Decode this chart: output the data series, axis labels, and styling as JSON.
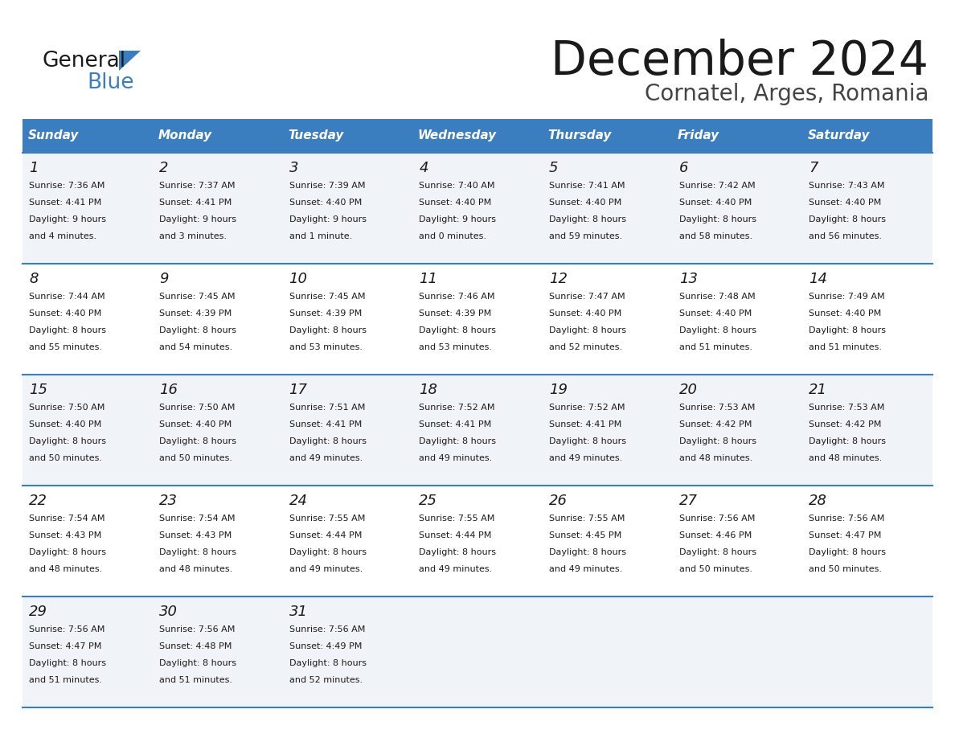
{
  "title": "December 2024",
  "subtitle": "Cornatel, Arges, Romania",
  "header_bg_color": "#3a7ebf",
  "header_text_color": "#ffffff",
  "row_bg_even": "#f0f4f8",
  "row_bg_odd": "#ffffff",
  "border_color": "#3a7ebf",
  "days_of_week": [
    "Sunday",
    "Monday",
    "Tuesday",
    "Wednesday",
    "Thursday",
    "Friday",
    "Saturday"
  ],
  "calendar_data": [
    [
      {
        "day": 1,
        "sunrise": "7:36 AM",
        "sunset": "4:41 PM",
        "daylight_line1": "Daylight: 9 hours",
        "daylight_line2": "and 4 minutes."
      },
      {
        "day": 2,
        "sunrise": "7:37 AM",
        "sunset": "4:41 PM",
        "daylight_line1": "Daylight: 9 hours",
        "daylight_line2": "and 3 minutes."
      },
      {
        "day": 3,
        "sunrise": "7:39 AM",
        "sunset": "4:40 PM",
        "daylight_line1": "Daylight: 9 hours",
        "daylight_line2": "and 1 minute."
      },
      {
        "day": 4,
        "sunrise": "7:40 AM",
        "sunset": "4:40 PM",
        "daylight_line1": "Daylight: 9 hours",
        "daylight_line2": "and 0 minutes."
      },
      {
        "day": 5,
        "sunrise": "7:41 AM",
        "sunset": "4:40 PM",
        "daylight_line1": "Daylight: 8 hours",
        "daylight_line2": "and 59 minutes."
      },
      {
        "day": 6,
        "sunrise": "7:42 AM",
        "sunset": "4:40 PM",
        "daylight_line1": "Daylight: 8 hours",
        "daylight_line2": "and 58 minutes."
      },
      {
        "day": 7,
        "sunrise": "7:43 AM",
        "sunset": "4:40 PM",
        "daylight_line1": "Daylight: 8 hours",
        "daylight_line2": "and 56 minutes."
      }
    ],
    [
      {
        "day": 8,
        "sunrise": "7:44 AM",
        "sunset": "4:40 PM",
        "daylight_line1": "Daylight: 8 hours",
        "daylight_line2": "and 55 minutes."
      },
      {
        "day": 9,
        "sunrise": "7:45 AM",
        "sunset": "4:39 PM",
        "daylight_line1": "Daylight: 8 hours",
        "daylight_line2": "and 54 minutes."
      },
      {
        "day": 10,
        "sunrise": "7:45 AM",
        "sunset": "4:39 PM",
        "daylight_line1": "Daylight: 8 hours",
        "daylight_line2": "and 53 minutes."
      },
      {
        "day": 11,
        "sunrise": "7:46 AM",
        "sunset": "4:39 PM",
        "daylight_line1": "Daylight: 8 hours",
        "daylight_line2": "and 53 minutes."
      },
      {
        "day": 12,
        "sunrise": "7:47 AM",
        "sunset": "4:40 PM",
        "daylight_line1": "Daylight: 8 hours",
        "daylight_line2": "and 52 minutes."
      },
      {
        "day": 13,
        "sunrise": "7:48 AM",
        "sunset": "4:40 PM",
        "daylight_line1": "Daylight: 8 hours",
        "daylight_line2": "and 51 minutes."
      },
      {
        "day": 14,
        "sunrise": "7:49 AM",
        "sunset": "4:40 PM",
        "daylight_line1": "Daylight: 8 hours",
        "daylight_line2": "and 51 minutes."
      }
    ],
    [
      {
        "day": 15,
        "sunrise": "7:50 AM",
        "sunset": "4:40 PM",
        "daylight_line1": "Daylight: 8 hours",
        "daylight_line2": "and 50 minutes."
      },
      {
        "day": 16,
        "sunrise": "7:50 AM",
        "sunset": "4:40 PM",
        "daylight_line1": "Daylight: 8 hours",
        "daylight_line2": "and 50 minutes."
      },
      {
        "day": 17,
        "sunrise": "7:51 AM",
        "sunset": "4:41 PM",
        "daylight_line1": "Daylight: 8 hours",
        "daylight_line2": "and 49 minutes."
      },
      {
        "day": 18,
        "sunrise": "7:52 AM",
        "sunset": "4:41 PM",
        "daylight_line1": "Daylight: 8 hours",
        "daylight_line2": "and 49 minutes."
      },
      {
        "day": 19,
        "sunrise": "7:52 AM",
        "sunset": "4:41 PM",
        "daylight_line1": "Daylight: 8 hours",
        "daylight_line2": "and 49 minutes."
      },
      {
        "day": 20,
        "sunrise": "7:53 AM",
        "sunset": "4:42 PM",
        "daylight_line1": "Daylight: 8 hours",
        "daylight_line2": "and 48 minutes."
      },
      {
        "day": 21,
        "sunrise": "7:53 AM",
        "sunset": "4:42 PM",
        "daylight_line1": "Daylight: 8 hours",
        "daylight_line2": "and 48 minutes."
      }
    ],
    [
      {
        "day": 22,
        "sunrise": "7:54 AM",
        "sunset": "4:43 PM",
        "daylight_line1": "Daylight: 8 hours",
        "daylight_line2": "and 48 minutes."
      },
      {
        "day": 23,
        "sunrise": "7:54 AM",
        "sunset": "4:43 PM",
        "daylight_line1": "Daylight: 8 hours",
        "daylight_line2": "and 48 minutes."
      },
      {
        "day": 24,
        "sunrise": "7:55 AM",
        "sunset": "4:44 PM",
        "daylight_line1": "Daylight: 8 hours",
        "daylight_line2": "and 49 minutes."
      },
      {
        "day": 25,
        "sunrise": "7:55 AM",
        "sunset": "4:44 PM",
        "daylight_line1": "Daylight: 8 hours",
        "daylight_line2": "and 49 minutes."
      },
      {
        "day": 26,
        "sunrise": "7:55 AM",
        "sunset": "4:45 PM",
        "daylight_line1": "Daylight: 8 hours",
        "daylight_line2": "and 49 minutes."
      },
      {
        "day": 27,
        "sunrise": "7:56 AM",
        "sunset": "4:46 PM",
        "daylight_line1": "Daylight: 8 hours",
        "daylight_line2": "and 50 minutes."
      },
      {
        "day": 28,
        "sunrise": "7:56 AM",
        "sunset": "4:47 PM",
        "daylight_line1": "Daylight: 8 hours",
        "daylight_line2": "and 50 minutes."
      }
    ],
    [
      {
        "day": 29,
        "sunrise": "7:56 AM",
        "sunset": "4:47 PM",
        "daylight_line1": "Daylight: 8 hours",
        "daylight_line2": "and 51 minutes."
      },
      {
        "day": 30,
        "sunrise": "7:56 AM",
        "sunset": "4:48 PM",
        "daylight_line1": "Daylight: 8 hours",
        "daylight_line2": "and 51 minutes."
      },
      {
        "day": 31,
        "sunrise": "7:56 AM",
        "sunset": "4:49 PM",
        "daylight_line1": "Daylight: 8 hours",
        "daylight_line2": "and 52 minutes."
      },
      null,
      null,
      null,
      null
    ]
  ]
}
